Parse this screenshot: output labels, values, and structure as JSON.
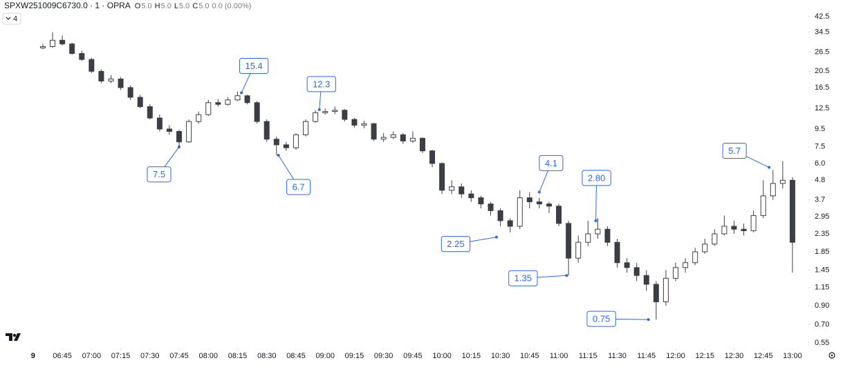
{
  "chart_data": {
    "type": "candlestick",
    "title": "SPXW251009C6730.0 · 1 · OPRA",
    "ohlc_legend": [
      {
        "label": "O",
        "value": "5.0"
      },
      {
        "label": "H",
        "value": "5.0"
      },
      {
        "label": "L",
        "value": "5.0"
      },
      {
        "label": "C",
        "value": "5.0"
      }
    ],
    "change": "0.0 (0.00%)",
    "indicators_count": "4",
    "color": "#3b3e45",
    "log_scale": true,
    "x": [
      "06:35",
      "06:40",
      "06:45",
      "06:50",
      "06:55",
      "07:00",
      "07:05",
      "07:10",
      "07:15",
      "07:20",
      "07:25",
      "07:30",
      "07:35",
      "07:40",
      "07:45",
      "07:50",
      "07:55",
      "08:00",
      "08:05",
      "08:10",
      "08:15",
      "08:20",
      "08:25",
      "08:30",
      "08:35",
      "08:40",
      "08:45",
      "08:50",
      "08:55",
      "09:00",
      "09:05",
      "09:10",
      "09:15",
      "09:20",
      "09:25",
      "09:30",
      "09:35",
      "09:40",
      "09:45",
      "09:50",
      "09:55",
      "10:00",
      "10:05",
      "10:10",
      "10:15",
      "10:20",
      "10:25",
      "10:30",
      "10:35",
      "10:40",
      "10:45",
      "10:50",
      "10:55",
      "11:00",
      "11:05",
      "11:10",
      "11:15",
      "11:20",
      "11:25",
      "11:30",
      "11:35",
      "11:40",
      "11:45",
      "11:50",
      "11:55",
      "12:00",
      "12:05",
      "12:10",
      "12:15",
      "12:20",
      "12:25",
      "12:30",
      "12:35",
      "12:40",
      "12:45",
      "12:50",
      "12:55",
      "13:00"
    ],
    "open": [
      28,
      28.5,
      31,
      29.5,
      26,
      24,
      20.5,
      18,
      18.5,
      16.5,
      14.5,
      12.8,
      11,
      9.5,
      9.2,
      8,
      10.5,
      11.5,
      13.5,
      13.2,
      14,
      14.8,
      13.5,
      10.5,
      8.3,
      7.7,
      7.4,
      8.8,
      10.5,
      11.8,
      12,
      12.2,
      10.8,
      10,
      10.2,
      8.3,
      8.5,
      8.8,
      8.1,
      8.4,
      7.1,
      6,
      4.2,
      4.4,
      4,
      3.8,
      3.5,
      3.2,
      2.8,
      2.6,
      3.8,
      3.6,
      3.5,
      3.4,
      2.7,
      1.7,
      2.1,
      2.35,
      2.5,
      2.1,
      1.6,
      1.5,
      1.35,
      1.2,
      0.95,
      1.3,
      1.5,
      1.6,
      1.85,
      2.05,
      2.35,
      2.6,
      2.5,
      2.45,
      3,
      3.9,
      4.6,
      4.8
    ],
    "high": [
      29.5,
      34.5,
      33,
      30,
      27,
      24.5,
      21,
      19.5,
      19,
      17,
      15,
      13.2,
      11.5,
      10,
      9.4,
      10.8,
      12,
      14,
      14.2,
      14.5,
      15.6,
      15,
      13.8,
      10.8,
      8.6,
      8,
      9,
      10.8,
      12.2,
      12.5,
      12.8,
      12.4,
      11,
      10.6,
      10.3,
      9,
      9.2,
      9,
      9.2,
      8.5,
      7.2,
      6.1,
      4.8,
      4.6,
      4.2,
      3.9,
      3.6,
      3.3,
      2.9,
      4.2,
      4.1,
      3.8,
      3.6,
      3.5,
      2.8,
      2.3,
      2.8,
      2.9,
      2.6,
      2.2,
      1.7,
      1.6,
      1.45,
      1.25,
      1.45,
      1.6,
      1.7,
      1.95,
      2.2,
      2.5,
      3,
      2.8,
      2.7,
      3.2,
      4.8,
      5.5,
      6.2,
      5
    ],
    "low": [
      27.5,
      28,
      29,
      25.5,
      23.5,
      20,
      17.5,
      17.5,
      16,
      14,
      12.5,
      10.8,
      9.2,
      8.8,
      7.3,
      7.9,
      10.2,
      11.3,
      12.8,
      13,
      13.8,
      13.2,
      10.2,
      8,
      6.7,
      7.1,
      7.2,
      8.6,
      10.3,
      11.5,
      11.6,
      10.5,
      9.7,
      9.6,
      8.1,
      8,
      8.3,
      7.8,
      7.9,
      6.9,
      5.7,
      4,
      4,
      3.8,
      3.6,
      3.3,
      3,
      2.6,
      2.4,
      2.5,
      3.3,
      3.3,
      3.1,
      2.6,
      1.35,
      1.6,
      2,
      2.2,
      2,
      1.5,
      1.4,
      1.25,
      1.1,
      0.75,
      0.9,
      1.25,
      1.4,
      1.55,
      1.8,
      2,
      2.3,
      2.35,
      2.3,
      2.4,
      2.9,
      3.7,
      4.3,
      1.4
    ],
    "close": [
      28.5,
      31,
      29.5,
      26,
      24,
      20.5,
      18,
      18.5,
      16.5,
      14.5,
      12.8,
      11,
      9.5,
      9.2,
      8,
      10.5,
      11.5,
      13.5,
      13.2,
      14,
      14.8,
      13.5,
      10.5,
      8.3,
      7.7,
      7.4,
      8.8,
      10.5,
      11.8,
      12,
      12.2,
      10.8,
      10,
      10.2,
      8.3,
      8.5,
      8.8,
      8.1,
      8.4,
      7.1,
      6,
      4.2,
      4.4,
      4,
      3.8,
      3.5,
      3.2,
      2.8,
      2.6,
      3.8,
      3.6,
      3.5,
      3.4,
      2.7,
      1.7,
      2.1,
      2.35,
      2.5,
      2.1,
      1.6,
      1.5,
      1.35,
      1.2,
      0.95,
      1.3,
      1.5,
      1.6,
      1.85,
      2.05,
      2.35,
      2.6,
      2.5,
      2.45,
      3,
      3.9,
      4.6,
      4.8,
      2.1
    ],
    "xlim": [
      "06:13",
      "13:05"
    ],
    "xticks": [
      {
        "value": "06:30",
        "label": "9"
      },
      "06:45",
      "07:00",
      "07:15",
      "07:30",
      "07:45",
      "08:00",
      "08:15",
      "08:30",
      "08:45",
      "09:00",
      "09:15",
      "09:30",
      "09:45",
      "10:00",
      "10:15",
      "10:30",
      "10:45",
      "11:00",
      "11:15",
      "11:30",
      "11:45",
      "12:00",
      "12:15",
      "12:30",
      "12:45",
      "13:00"
    ],
    "ylim": [
      0.52,
      53
    ],
    "yticks": [
      42.5,
      34.5,
      26.5,
      20.5,
      16.5,
      12.5,
      9.5,
      7.5,
      {
        "value": 6,
        "label": "6.0"
      },
      4.8,
      3.7,
      2.95,
      2.35,
      1.85,
      1.45,
      1.15,
      {
        "value": 0.9,
        "label": "0.90"
      },
      {
        "value": 0.7,
        "label": "0.70"
      },
      0.55
    ],
    "annotations": [
      {
        "x": "08:17",
        "value": 15.4
      },
      {
        "x": "08:57",
        "value": 12.3
      },
      {
        "x": "07:45",
        "value": 7.5
      },
      {
        "x": "08:36",
        "value": 6.7
      },
      {
        "x": "10:50",
        "value": 4.1
      },
      {
        "x": "11:19",
        "value": 2.8,
        "label": "2.80"
      },
      {
        "x": "10:28",
        "value": 2.25
      },
      {
        "x": "11:04",
        "value": 1.35
      },
      {
        "x": "11:46",
        "value": 0.75
      },
      {
        "x": "12:48",
        "value": 5.7
      }
    ],
    "annotation_color": "#2962ff"
  }
}
